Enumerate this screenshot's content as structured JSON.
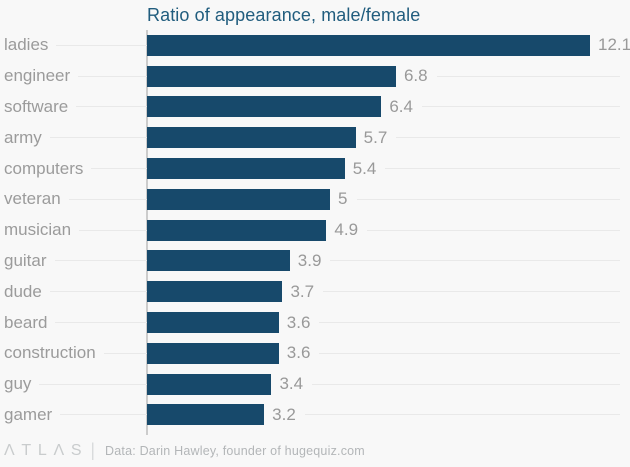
{
  "title": "Ratio of appearance, male/female",
  "chart_data": {
    "type": "bar",
    "orientation": "horizontal",
    "title": "Ratio of appearance, male/female",
    "categories": [
      "ladies",
      "engineer",
      "software",
      "army",
      "computers",
      "veteran",
      "musician",
      "guitar",
      "dude",
      "beard",
      "construction",
      "guy",
      "gamer"
    ],
    "values": [
      12.1,
      6.8,
      6.4,
      5.7,
      5.4,
      5,
      4.9,
      3.9,
      3.7,
      3.6,
      3.6,
      3.4,
      3.2
    ],
    "value_labels": [
      "12.1",
      "6.8",
      "6.4",
      "5.7",
      "5.4",
      "5",
      "4.9",
      "3.9",
      "3.7",
      "3.6",
      "3.6",
      "3.4",
      "3.2"
    ],
    "xlabel": "",
    "ylabel": "",
    "xlim": [
      0,
      12.1
    ],
    "grid": true,
    "legend": false,
    "bar_color": "#17496b",
    "category_label_color": "#9b9b9b",
    "value_label_color": "#999999",
    "gridline_color": "#e9e9e9",
    "axis_color": "#cccccc",
    "title_color": "#215d7e",
    "background_color": "#f8f8f8"
  },
  "footer": {
    "logo": "ΛTLΛS",
    "divider": "|",
    "source": "Data: Darin Hawley, founder of hugequiz.com"
  }
}
